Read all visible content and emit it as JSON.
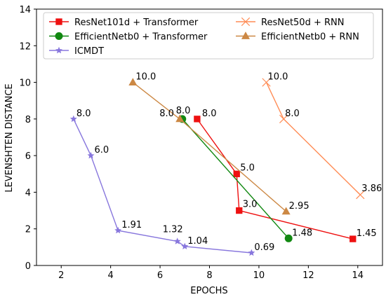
{
  "chart_data": {
    "type": "line",
    "title": "",
    "xlabel": "EPOCHS",
    "ylabel": "LEVENSHTEN DISTANCE",
    "xlim": [
      1,
      15
    ],
    "ylim": [
      0,
      14
    ],
    "xticks": [
      "2",
      "4",
      "6",
      "8",
      "10",
      "12",
      "14"
    ],
    "yticks": [
      "0",
      "2",
      "4",
      "6",
      "8",
      "10",
      "12",
      "14"
    ],
    "legend_location": "top",
    "series": [
      {
        "name": "ResNet101d + Transformer",
        "color": "#ee1111",
        "marker": "square",
        "points": [
          [
            7.5,
            8.0
          ],
          [
            9.1,
            5.0
          ],
          [
            9.2,
            3.0
          ],
          [
            13.8,
            1.45
          ]
        ],
        "labels": [
          "8.0",
          "5.0",
          "3.0",
          "1.45"
        ]
      },
      {
        "name": "EfficientNetb0 + Transformer",
        "color": "#118811",
        "marker": "circle",
        "points": [
          [
            6.9,
            8.0
          ],
          [
            11.2,
            1.48
          ]
        ],
        "labels": [
          "8.0",
          "1.48"
        ]
      },
      {
        "name": "ICMDT",
        "color": "#8877dd",
        "marker": "star",
        "points": [
          [
            2.5,
            8.0
          ],
          [
            3.2,
            6.0
          ],
          [
            4.3,
            1.91
          ],
          [
            6.7,
            1.32
          ],
          [
            7.0,
            1.04
          ],
          [
            9.7,
            0.69
          ]
        ],
        "labels": [
          "8.0",
          "6.0",
          "1.91",
          "1.32",
          "1.04",
          "0.69"
        ]
      },
      {
        "name": "ResNet50d + RNN",
        "color": "#ff8c55",
        "marker": "x",
        "points": [
          [
            10.3,
            10.0
          ],
          [
            11.0,
            8.0
          ],
          [
            14.1,
            3.86
          ]
        ],
        "labels": [
          "10.0",
          "8.0",
          "3.86"
        ]
      },
      {
        "name": "EfficientNetb0 + RNN",
        "color": "#cc8844",
        "marker": "triangle",
        "points": [
          [
            4.9,
            10.0
          ],
          [
            6.8,
            8.0
          ],
          [
            11.1,
            2.95
          ]
        ],
        "labels": [
          "10.0",
          "8.0",
          "2.95"
        ]
      }
    ]
  }
}
